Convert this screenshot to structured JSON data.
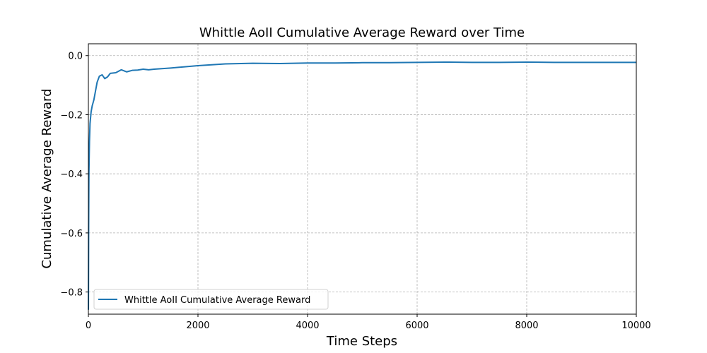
{
  "chart_data": {
    "type": "line",
    "title": "Whittle AoII Cumulative Average Reward over Time",
    "xlabel": "Time Steps",
    "ylabel": "Cumulative Average Reward",
    "xlim": [
      0,
      10000
    ],
    "ylim": [
      -0.875,
      0.04
    ],
    "xticks": [
      0,
      2000,
      4000,
      6000,
      8000,
      10000
    ],
    "xtick_labels": [
      "0",
      "2000",
      "4000",
      "6000",
      "8000",
      "10000"
    ],
    "yticks": [
      0.0,
      -0.2,
      -0.4,
      -0.6,
      -0.8
    ],
    "ytick_labels": [
      "0.0",
      "−0.2",
      "−0.4",
      "−0.6",
      "−0.8"
    ],
    "grid": true,
    "legend_position": "lower-left",
    "line_color": "#1f77b4",
    "series": [
      {
        "name": "Whittle AoII Cumulative Average Reward",
        "x": [
          1,
          5,
          10,
          20,
          30,
          50,
          70,
          100,
          130,
          160,
          200,
          250,
          300,
          350,
          400,
          500,
          600,
          700,
          800,
          900,
          1000,
          1100,
          1200,
          1500,
          2000,
          2500,
          3000,
          3500,
          4000,
          4500,
          5000,
          5500,
          6000,
          6500,
          7000,
          7500,
          8000,
          8500,
          9000,
          9500,
          10000
        ],
        "values": [
          -0.86,
          -0.6,
          -0.4,
          -0.29,
          -0.23,
          -0.19,
          -0.17,
          -0.15,
          -0.12,
          -0.09,
          -0.07,
          -0.065,
          -0.078,
          -0.072,
          -0.06,
          -0.058,
          -0.048,
          -0.055,
          -0.05,
          -0.049,
          -0.046,
          -0.048,
          -0.046,
          -0.042,
          -0.034,
          -0.028,
          -0.026,
          -0.027,
          -0.025,
          -0.025,
          -0.024,
          -0.024,
          -0.023,
          -0.022,
          -0.023,
          -0.023,
          -0.022,
          -0.023,
          -0.023,
          -0.023,
          -0.023
        ]
      }
    ]
  }
}
